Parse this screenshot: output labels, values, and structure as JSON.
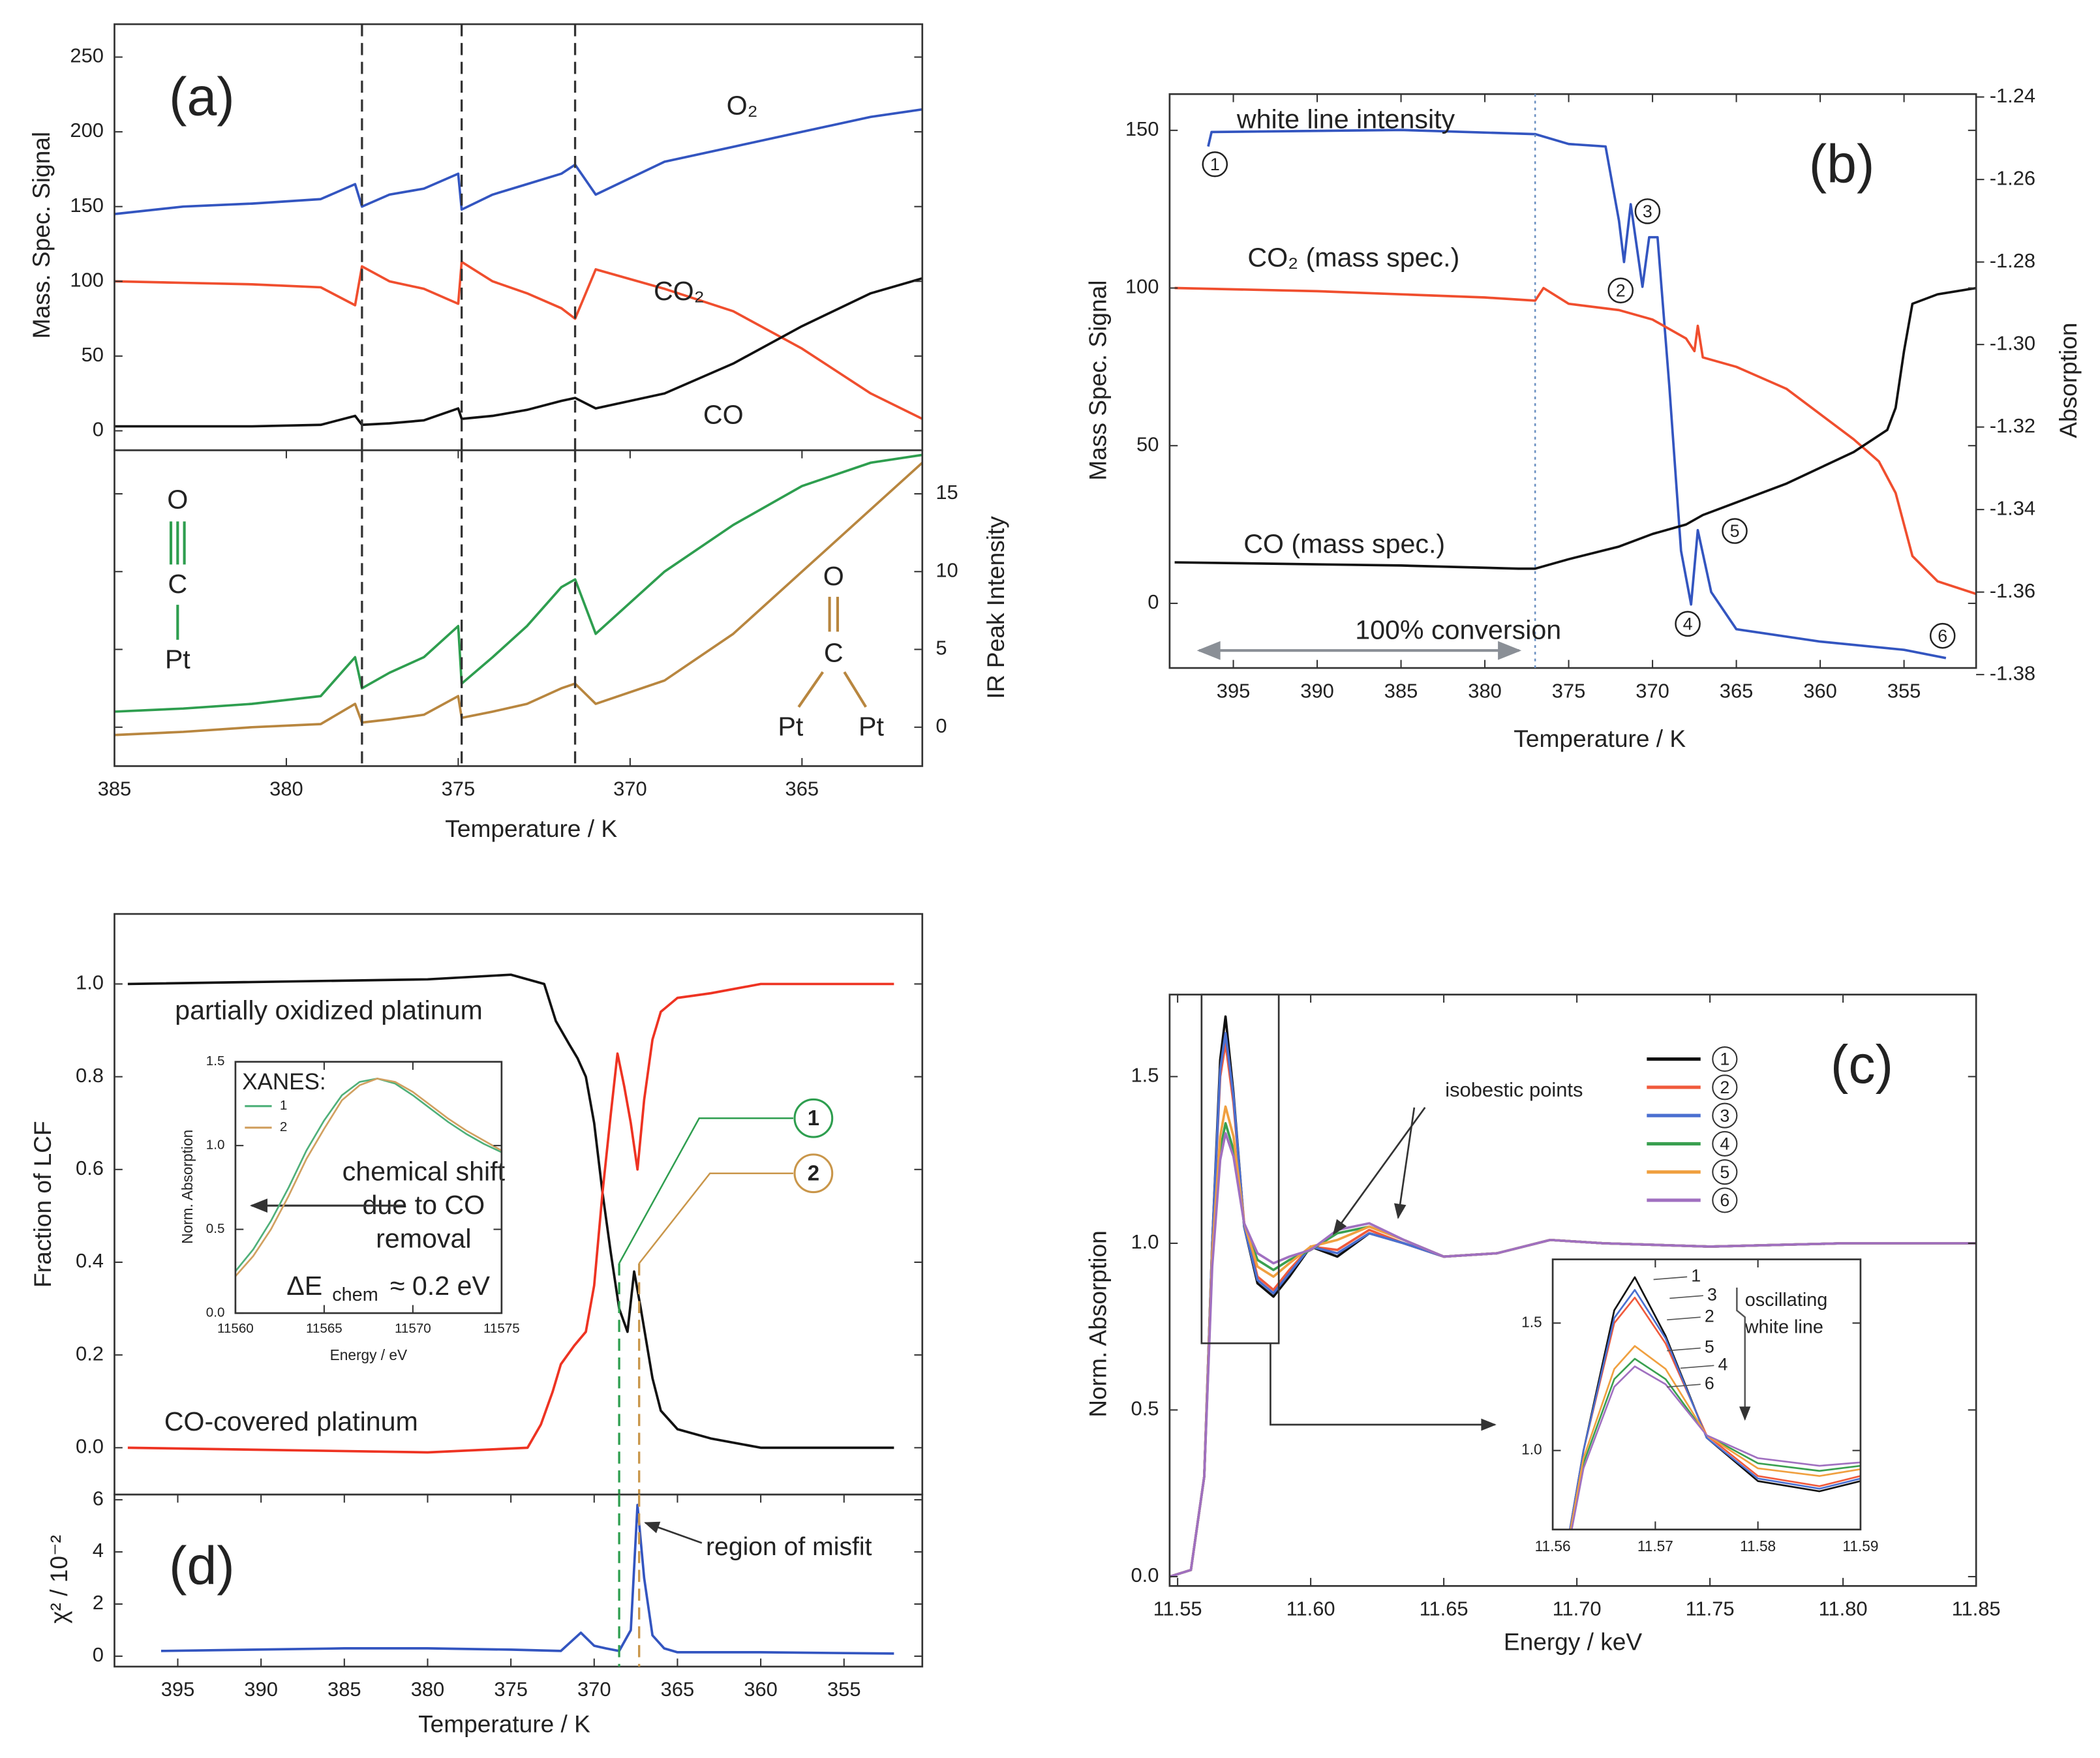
{
  "chart_data": [
    {
      "type": "line",
      "panel_label": "(a)",
      "ylabel": "Mass. Spec. Signal",
      "xlim": [
        385,
        361.5
      ],
      "ylim": [
        -13,
        272
      ],
      "yticks": [
        0,
        50,
        100,
        150,
        200,
        250
      ],
      "x": [
        385,
        383,
        381,
        379,
        378,
        377.8,
        377,
        376,
        375,
        374.9,
        374,
        373,
        372,
        371.6,
        371,
        369,
        367,
        365,
        363,
        361.5
      ],
      "vlines": [
        377.8,
        374.9,
        371.6
      ],
      "series": [
        {
          "name": "O₂",
          "color": "#3355c0",
          "values": [
            145,
            150,
            152,
            155,
            165,
            150,
            158,
            162,
            172,
            148,
            158,
            165,
            172,
            178,
            158,
            180,
            190,
            200,
            210,
            215
          ]
        },
        {
          "name": "CO₂",
          "color": "#f04e2e",
          "values": [
            100,
            99,
            98,
            96,
            84,
            110,
            100,
            95,
            85,
            113,
            100,
            92,
            82,
            75,
            108,
            95,
            80,
            55,
            25,
            8
          ]
        },
        {
          "name": "CO",
          "color": "#111111",
          "values": [
            3,
            3,
            3,
            4,
            10,
            4,
            5,
            7,
            15,
            8,
            10,
            14,
            20,
            22,
            15,
            25,
            45,
            70,
            92,
            102
          ]
        }
      ]
    },
    {
      "type": "line",
      "xlabel": "Temperature / K",
      "ylabel": "IR Peak Intensity",
      "y_side": "right",
      "xlim": [
        385,
        361.5
      ],
      "ylim": [
        -2.5,
        17.8
      ],
      "xticks": [
        385,
        380,
        375,
        370,
        365
      ],
      "yticks": [
        0,
        5,
        10,
        15
      ],
      "x": [
        385,
        383,
        381,
        379,
        378,
        377.8,
        377,
        376,
        375,
        374.9,
        374,
        373,
        372,
        371.6,
        371,
        369,
        367,
        365,
        363,
        361.5
      ],
      "vlines": [
        377.8,
        374.9,
        371.6
      ],
      "annotations": [
        {
          "text": "O",
          "color": "#2e9e4f"
        },
        {
          "text": "C",
          "color": "#2e9e4f"
        },
        {
          "text": "Pt",
          "color": "#2e9e4f"
        },
        {
          "text": "O",
          "color": "#b8863f"
        },
        {
          "text": "C",
          "color": "#b8863f"
        },
        {
          "text": "Pt",
          "color": "#b8863f"
        },
        {
          "text": "Pt",
          "color": "#b8863f"
        }
      ],
      "series": [
        {
          "color": "#2e9e4f",
          "values": [
            1,
            1.2,
            1.5,
            2,
            4.5,
            2.5,
            3.5,
            4.5,
            6.5,
            2.8,
            4.5,
            6.5,
            9,
            9.5,
            6,
            10,
            13,
            15.5,
            17,
            17.5
          ]
        },
        {
          "color": "#b8863f",
          "values": [
            -0.5,
            -0.3,
            0,
            0.2,
            1.5,
            0.3,
            0.5,
            0.8,
            2,
            0.6,
            1,
            1.5,
            2.5,
            2.8,
            1.5,
            3,
            6,
            10,
            14,
            17
          ]
        }
      ]
    },
    {
      "type": "line",
      "panel_label": "(b)",
      "xlabel": "Temperature / K",
      "ylabel": "Mass Spec. Signal",
      "y2label": "Absorption",
      "xlim": [
        398.8,
        350.7
      ],
      "ylim": [
        -20.5,
        161.5
      ],
      "y2lim": [
        -1.3784,
        -1.2393
      ],
      "xticks": [
        395,
        390,
        385,
        380,
        375,
        370,
        365,
        360,
        355
      ],
      "yticks": [
        0,
        50,
        100,
        150
      ],
      "y2ticks": [
        -1.24,
        -1.26,
        -1.28,
        {
          "value": -1.3,
          "label": "-1.30"
        },
        -1.32,
        -1.34,
        -1.36,
        -1.38
      ],
      "vline": 377,
      "annotations": [
        {
          "text": "100% conversion",
          "color": "#8a8f96"
        }
      ],
      "points": [
        {
          "label": "1",
          "x": 396.1,
          "y": -1.2563
        },
        {
          "label": "2",
          "x": 371.9,
          "y": -1.2869
        },
        {
          "label": "3",
          "x": 370.3,
          "y": -1.2677
        },
        {
          "label": "4",
          "x": 367.9,
          "y": -1.3677
        },
        {
          "label": "5",
          "x": 365.1,
          "y": -1.3452
        },
        {
          "label": "6",
          "x": 352.7,
          "y": -1.3706
        }
      ],
      "series": [
        {
          "name": "white line intensity",
          "color": "#3355c0",
          "axis": "y2",
          "x": [
            396.5,
            396.3,
            385,
            377,
            375,
            372.8,
            372,
            371.7,
            371.3,
            370.6,
            370.2,
            369.7,
            369,
            368.3,
            367.7,
            367.3,
            366.5,
            365,
            360,
            355,
            352.5
          ],
          "values": [
            -1.252,
            -1.2485,
            -1.248,
            -1.249,
            -1.2514,
            -1.252,
            -1.27,
            -1.28,
            -1.266,
            -1.286,
            -1.274,
            -1.274,
            -1.31,
            -1.35,
            -1.363,
            -1.345,
            -1.36,
            -1.369,
            -1.372,
            -1.374,
            -1.376
          ]
        },
        {
          "name": "CO₂ (mass spec.)",
          "color": "#f04e2e",
          "x": [
            398.5,
            390,
            385,
            380,
            377,
            376.5,
            375,
            372,
            370,
            368,
            367.5,
            367.3,
            367,
            365,
            362,
            360,
            358,
            356.5,
            355.5,
            354.5,
            353,
            350.7
          ],
          "values": [
            100,
            99,
            98,
            97,
            96,
            100,
            95,
            93,
            90,
            84,
            80,
            88,
            78,
            75,
            68,
            60,
            52,
            45,
            35,
            15,
            7,
            3
          ]
        },
        {
          "name": "CO (mass spec.)",
          "color": "#111111",
          "x": [
            398.5,
            385,
            378,
            377,
            375,
            372,
            370,
            368,
            367,
            365,
            362,
            360,
            358,
            356,
            355.5,
            355,
            354.5,
            353,
            350.7
          ],
          "values": [
            13,
            12,
            11,
            11,
            14,
            18,
            22,
            25,
            28,
            32,
            38,
            43,
            48,
            55,
            62,
            80,
            95,
            98,
            100
          ]
        }
      ]
    },
    {
      "type": "line",
      "ylabel": "Fraction of LCF",
      "xlim": [
        398.8,
        350.3
      ],
      "ylim": [
        -0.101,
        1.151
      ],
      "yticks": [
        {
          "value": 0,
          "label": "0.0"
        },
        0.2,
        0.4,
        0.6,
        0.8,
        {
          "value": 1,
          "label": "1.0"
        }
      ],
      "markers": [
        {
          "label": "1",
          "x": 368.5,
          "color": "#2e9e4f"
        },
        {
          "label": "2",
          "x": 367.3,
          "color": "#c9964a"
        }
      ],
      "annotations": [
        {
          "text": "chemical shift"
        },
        {
          "text": "due to CO"
        },
        {
          "text": "removal"
        },
        {
          "text": "ΔE"
        },
        {
          "text": "chem"
        },
        {
          "text": "≈ 0.2 eV"
        }
      ],
      "series": [
        {
          "name": "partially oxidized platinum",
          "color": "#111111",
          "x": [
            398,
            380,
            375,
            373,
            372.3,
            371.5,
            371,
            370.5,
            370,
            369.5,
            369,
            368.5,
            368,
            367.6,
            367.2,
            366.5,
            366,
            365,
            363,
            360,
            355,
            352
          ],
          "values": [
            1.0,
            1.01,
            1.02,
            1.0,
            0.92,
            0.87,
            0.84,
            0.8,
            0.7,
            0.55,
            0.42,
            0.3,
            0.25,
            0.38,
            0.3,
            0.15,
            0.08,
            0.04,
            0.02,
            0.0,
            0.0,
            0.0
          ]
        },
        {
          "name": "CO-covered platinum",
          "color": "#ee3322",
          "x": [
            398,
            380,
            374,
            373.2,
            372.5,
            372,
            371.2,
            370.5,
            370,
            369.5,
            369,
            368.6,
            368.2,
            367.8,
            367.4,
            367,
            366.5,
            366,
            365,
            363,
            360,
            355,
            352
          ],
          "values": [
            0,
            -0.01,
            0,
            0.05,
            0.12,
            0.18,
            0.22,
            0.25,
            0.35,
            0.55,
            0.72,
            0.85,
            0.78,
            0.7,
            0.6,
            0.75,
            0.88,
            0.94,
            0.97,
            0.98,
            1.0,
            1.0,
            1.0
          ]
        }
      ]
    },
    {
      "type": "line",
      "title": "XANES:",
      "xlabel": "Energy / eV",
      "ylabel": "Norm. Absorption",
      "xlim": [
        11560,
        11575
      ],
      "ylim": [
        0,
        1.5
      ],
      "xticks": [
        11560,
        11565,
        11570,
        11575
      ],
      "yticks": [
        {
          "value": 0,
          "label": "0.0"
        },
        0.5,
        {
          "value": 1,
          "label": "1.0"
        },
        1.5
      ],
      "x": [
        11560,
        11561,
        11562,
        11563,
        11564,
        11565,
        11566,
        11567,
        11568,
        11569,
        11570,
        11571,
        11572,
        11573,
        11574,
        11575
      ],
      "series": [
        {
          "name": "1",
          "color": "#4fb07a",
          "values": [
            0.25,
            0.38,
            0.55,
            0.75,
            0.97,
            1.15,
            1.3,
            1.38,
            1.4,
            1.37,
            1.3,
            1.22,
            1.14,
            1.07,
            1.01,
            0.96
          ]
        },
        {
          "name": "2",
          "color": "#d1a060",
          "values": [
            0.22,
            0.34,
            0.5,
            0.7,
            0.92,
            1.1,
            1.27,
            1.36,
            1.4,
            1.38,
            1.32,
            1.24,
            1.16,
            1.09,
            1.03,
            0.97
          ]
        }
      ]
    },
    {
      "type": "line",
      "panel_label": "(d)",
      "xlabel": "Temperature / K",
      "ylabel": "χ² / 10⁻²",
      "xlim": [
        398.8,
        350.3
      ],
      "ylim": [
        -0.4,
        6.2
      ],
      "xticks": [
        395,
        390,
        385,
        380,
        375,
        370,
        365,
        360,
        355
      ],
      "yticks": [
        0,
        2,
        4,
        6
      ],
      "vlines": [
        368.5,
        367.3
      ],
      "vline_colors": [
        "#2e9e4f",
        "#c9964a"
      ],
      "annotations": [
        {
          "text": "region of misfit"
        }
      ],
      "x": [
        396,
        385,
        380,
        375,
        372,
        370.8,
        370,
        369.3,
        368.5,
        367.8,
        367.4,
        367,
        366.5,
        365.8,
        365,
        360,
        352
      ],
      "series": [
        {
          "color": "#3355c0",
          "values": [
            0.2,
            0.3,
            0.3,
            0.25,
            0.2,
            0.9,
            0.4,
            0.3,
            0.2,
            1.0,
            5.8,
            3.0,
            0.8,
            0.3,
            0.15,
            0.15,
            0.1
          ]
        }
      ]
    },
    {
      "type": "line",
      "panel_label": "(c)",
      "xlabel": "Energy / keV",
      "ylabel": "Norm. Absorption",
      "xlim": [
        11.547,
        11.85
      ],
      "ylim": [
        -0.028,
        1.746
      ],
      "xticks": [
        11.55,
        {
          "value": 11.6,
          "label": "11.60"
        },
        11.65,
        {
          "value": 11.7,
          "label": "11.70"
        },
        11.75,
        {
          "value": 11.8,
          "label": "11.80"
        },
        11.85
      ],
      "yticks": [
        {
          "value": 0,
          "label": "0.0"
        },
        0.5,
        {
          "value": 1,
          "label": "1.0"
        },
        1.5
      ],
      "zoom_box": {
        "x": [
          11.559,
          11.588
        ],
        "y": [
          0.7,
          1.746
        ]
      },
      "annotations": [
        {
          "text": "isobestic points"
        }
      ],
      "x": [
        11.547,
        11.555,
        11.56,
        11.563,
        11.566,
        11.568,
        11.571,
        11.575,
        11.58,
        11.586,
        11.592,
        11.6,
        11.61,
        11.622,
        11.635,
        11.65,
        11.67,
        11.69,
        11.71,
        11.75,
        11.8,
        11.85
      ],
      "series": [
        {
          "name": "1",
          "color": "#111111",
          "values": [
            0,
            0.02,
            0.3,
            1.0,
            1.55,
            1.68,
            1.45,
            1.05,
            0.88,
            0.84,
            0.9,
            0.99,
            0.96,
            1.03,
            1.0,
            0.96,
            0.97,
            1.01,
            1.0,
            0.99,
            1.0,
            1.0
          ]
        },
        {
          "name": "2",
          "color": "#f05a3c",
          "values": [
            0,
            0.02,
            0.3,
            1.0,
            1.5,
            1.6,
            1.42,
            1.06,
            0.9,
            0.86,
            0.92,
            0.99,
            0.98,
            1.04,
            1.0,
            0.96,
            0.97,
            1.01,
            1.0,
            0.99,
            1.0,
            1.0
          ]
        },
        {
          "name": "3",
          "color": "#4a6fd0",
          "values": [
            0,
            0.02,
            0.3,
            1.0,
            1.52,
            1.63,
            1.44,
            1.05,
            0.89,
            0.85,
            0.91,
            0.99,
            0.97,
            1.03,
            1.0,
            0.96,
            0.97,
            1.01,
            1.0,
            0.99,
            1.0,
            1.0
          ]
        },
        {
          "name": "4",
          "color": "#3aa050",
          "values": [
            0,
            0.02,
            0.3,
            0.95,
            1.28,
            1.36,
            1.28,
            1.06,
            0.95,
            0.92,
            0.95,
            0.98,
            1.03,
            1.05,
            1.01,
            0.96,
            0.97,
            1.01,
            1.0,
            0.99,
            1.0,
            1.0
          ]
        },
        {
          "name": "5",
          "color": "#f0a040",
          "values": [
            0,
            0.02,
            0.3,
            0.97,
            1.32,
            1.41,
            1.32,
            1.06,
            0.93,
            0.9,
            0.94,
            0.99,
            1.01,
            1.05,
            1.01,
            0.96,
            0.97,
            1.01,
            1.0,
            0.99,
            1.0,
            1.0
          ]
        },
        {
          "name": "6",
          "color": "#a070c0",
          "values": [
            0,
            0.02,
            0.3,
            0.93,
            1.25,
            1.33,
            1.26,
            1.06,
            0.97,
            0.94,
            0.96,
            0.98,
            1.04,
            1.06,
            1.01,
            0.96,
            0.97,
            1.01,
            1.0,
            0.99,
            1.0,
            1.0
          ]
        }
      ],
      "inset": {
        "xlim": [
          11.56,
          11.59
        ],
        "ylim": [
          0.69,
          1.75
        ],
        "xticks": [
          11.56,
          11.57,
          11.58,
          11.59
        ],
        "yticks": [
          {
            "value": 1,
            "label": "1.0"
          },
          1.5
        ],
        "annotations": [
          {
            "text": "oscillating"
          },
          {
            "text": "white line"
          }
        ]
      }
    }
  ]
}
